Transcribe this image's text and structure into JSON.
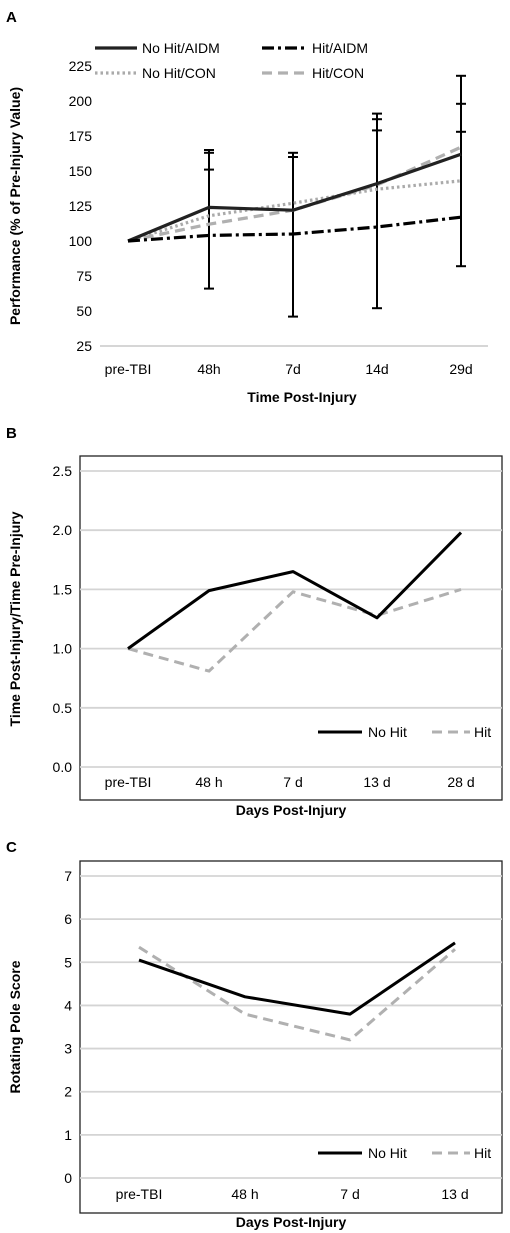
{
  "chart_data": [
    {
      "panel": "A",
      "type": "line",
      "categories": [
        "pre-TBI",
        "48h",
        "7d",
        "14d",
        "29d"
      ],
      "xlabel": "Time Post-Injury",
      "ylabel": "Performance (% of Pre-Injury Value)",
      "ylim": [
        25,
        225
      ],
      "yticks": [
        25,
        50,
        75,
        100,
        125,
        150,
        175,
        200,
        225
      ],
      "grid": false,
      "legend_position": "top",
      "series": [
        {
          "name": "No Hit/AIDM",
          "values": [
            100,
            124,
            122,
            141,
            162
          ],
          "color": "#222222",
          "dash": "solid",
          "width": 3.2
        },
        {
          "name": "Hit/AIDM",
          "values": [
            100,
            104,
            105,
            110,
            117
          ],
          "color": "#000000",
          "dash": "dashdot",
          "width": 3.2
        },
        {
          "name": "No Hit/CON",
          "values": [
            100,
            118,
            127,
            137,
            143
          ],
          "color": "#aaaaaa",
          "dash": "dotted",
          "width": 3.2
        },
        {
          "name": "Hit/CON",
          "values": [
            100,
            112,
            122,
            140,
            167
          ],
          "color": "#b0b0b0",
          "dash": "dashed",
          "width": 3.2
        }
      ],
      "error_bars": [
        {
          "x": "48h",
          "low": 66,
          "high": 165,
          "caps": [
            66,
            151,
            163,
            165
          ]
        },
        {
          "x": "7d",
          "low": 46,
          "high": 163,
          "caps": [
            46,
            160,
            163
          ]
        },
        {
          "x": "14d",
          "low": 52,
          "high": 191,
          "caps": [
            52,
            179,
            187,
            191
          ]
        },
        {
          "x": "29d",
          "low": 82,
          "high": 218,
          "caps": [
            82,
            178,
            198,
            218
          ]
        }
      ]
    },
    {
      "panel": "B",
      "type": "line",
      "categories": [
        "pre-TBI",
        "48 h",
        "7 d",
        "13 d",
        "28 d"
      ],
      "xlabel": "Days Post-Injury",
      "ylabel": "Time Post-Injury/Time Pre-Injury",
      "ylim": [
        0,
        2.5
      ],
      "yticks": [
        "0.0",
        "0.5",
        "1.0",
        "1.5",
        "2.0",
        "2.5"
      ],
      "grid": true,
      "legend_position": "bottom-right",
      "series": [
        {
          "name": "No Hit",
          "values": [
            1.0,
            1.49,
            1.65,
            1.26,
            1.98
          ],
          "color": "#000000",
          "dash": "solid",
          "width": 3
        },
        {
          "name": "Hit",
          "values": [
            1.0,
            0.81,
            1.48,
            1.28,
            1.5
          ],
          "color": "#b0b0b0",
          "dash": "dashed",
          "width": 3
        }
      ]
    },
    {
      "panel": "C",
      "type": "line",
      "categories": [
        "pre-TBI",
        "48 h",
        "7 d",
        "13 d"
      ],
      "xlabel": "Days Post-Injury",
      "ylabel": "Rotating Pole Score",
      "ylim": [
        0,
        7
      ],
      "yticks": [
        "0",
        "1",
        "2",
        "3",
        "4",
        "5",
        "6",
        "7"
      ],
      "grid": true,
      "legend_position": "bottom-right",
      "series": [
        {
          "name": "No Hit",
          "values": [
            5.05,
            4.2,
            3.8,
            5.45
          ],
          "color": "#000000",
          "dash": "solid",
          "width": 3
        },
        {
          "name": "Hit",
          "values": [
            5.35,
            3.8,
            3.2,
            5.3
          ],
          "color": "#b0b0b0",
          "dash": "dashed",
          "width": 3
        }
      ]
    }
  ]
}
